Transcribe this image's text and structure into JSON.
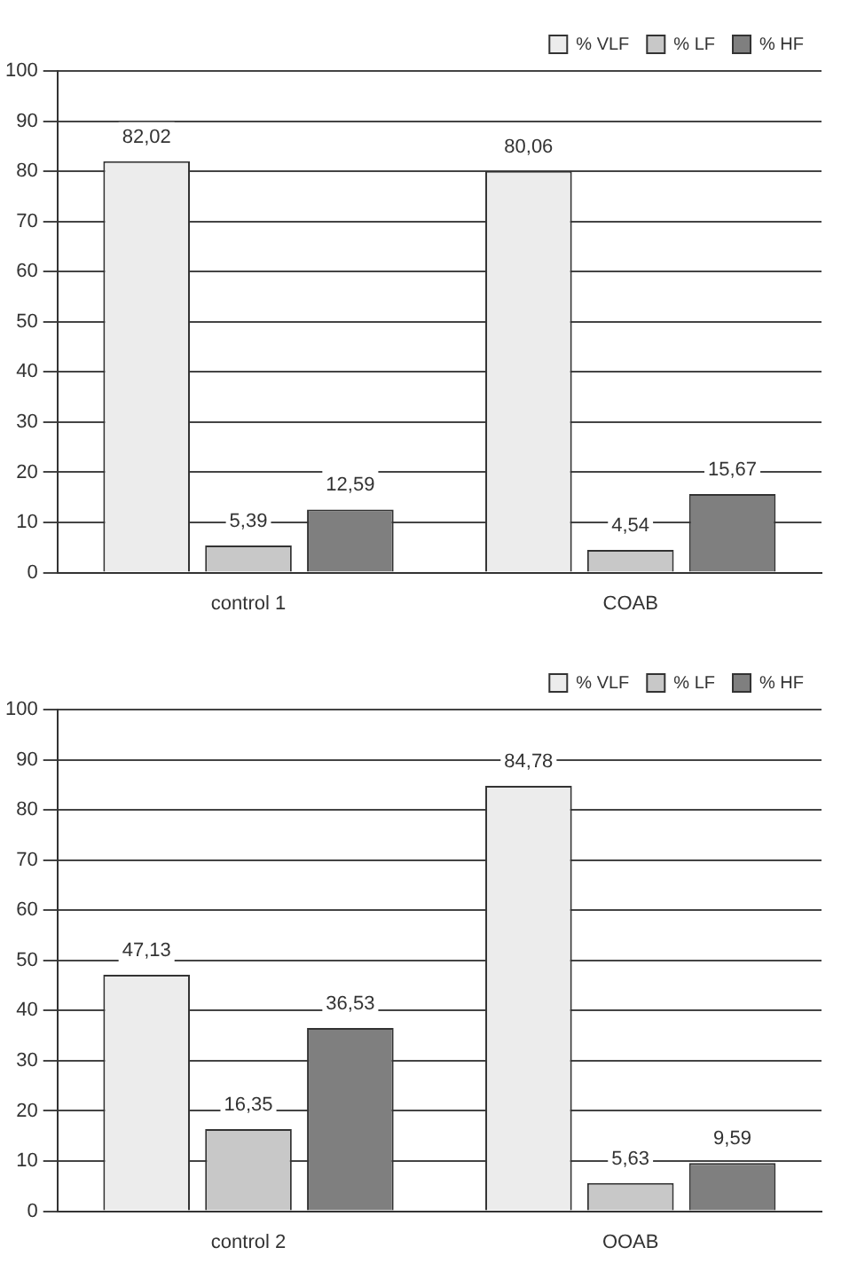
{
  "chart_data": [
    {
      "type": "bar",
      "categories": [
        "control 1",
        "COAB"
      ],
      "ylim": [
        0,
        100
      ],
      "yticks": [
        0,
        10,
        20,
        30,
        40,
        50,
        60,
        70,
        80,
        90,
        100
      ],
      "grid": "y",
      "legend": "top right",
      "series": [
        {
          "name": "% VLF",
          "color": "#ececec",
          "values": [
            82.02,
            80.06
          ],
          "value_labels": [
            "82,02",
            "80,06"
          ]
        },
        {
          "name": "% LF",
          "color": "#c8c8c8",
          "values": [
            5.39,
            4.54
          ],
          "value_labels": [
            "5,39",
            "4,54"
          ]
        },
        {
          "name": "% HF",
          "color": "#7f7f7f",
          "values": [
            12.59,
            15.67
          ],
          "value_labels": [
            "12,59",
            "15,67"
          ]
        }
      ]
    },
    {
      "type": "bar",
      "categories": [
        "control 2",
        "OOAB"
      ],
      "ylim": [
        0,
        100
      ],
      "yticks": [
        0,
        10,
        20,
        30,
        40,
        50,
        60,
        70,
        80,
        90,
        100
      ],
      "grid": "y",
      "legend": "top right",
      "series": [
        {
          "name": "% VLF",
          "color": "#ececec",
          "values": [
            47.13,
            84.78
          ],
          "value_labels": [
            "47,13",
            "84,78"
          ]
        },
        {
          "name": "% LF",
          "color": "#c8c8c8",
          "values": [
            16.35,
            5.63
          ],
          "value_labels": [
            "16,35",
            "5,63"
          ]
        },
        {
          "name": "% HF",
          "color": "#7f7f7f",
          "values": [
            36.53,
            9.59
          ],
          "value_labels": [
            "36,53",
            "9,59"
          ]
        }
      ]
    }
  ]
}
